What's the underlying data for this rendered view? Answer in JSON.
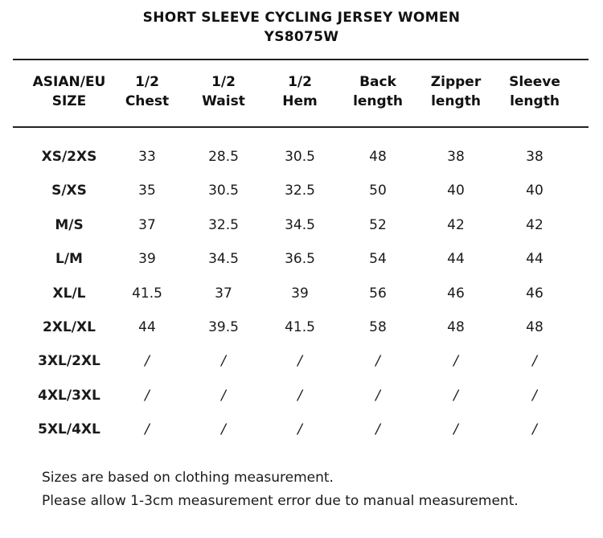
{
  "title": {
    "line1": "SHORT SLEEVE CYCLING JERSEY WOMEN",
    "line2": "YS8075W"
  },
  "columns": [
    {
      "line1": "ASIAN/EU",
      "line2": "SIZE"
    },
    {
      "line1": "1/2",
      "line2": "Chest"
    },
    {
      "line1": "1/2",
      "line2": "Waist"
    },
    {
      "line1": "1/2",
      "line2": "Hem"
    },
    {
      "line1": "Back",
      "line2": "length"
    },
    {
      "line1": "Zipper",
      "line2": "length"
    },
    {
      "line1": "Sleeve",
      "line2": "length"
    }
  ],
  "rows": [
    [
      "XS/2XS",
      "33",
      "28.5",
      "30.5",
      "48",
      "38",
      "38"
    ],
    [
      "S/XS",
      "35",
      "30.5",
      "32.5",
      "50",
      "40",
      "40"
    ],
    [
      "M/S",
      "37",
      "32.5",
      "34.5",
      "52",
      "42",
      "42"
    ],
    [
      "L/M",
      "39",
      "34.5",
      "36.5",
      "54",
      "44",
      "44"
    ],
    [
      "XL/L",
      "41.5",
      "37",
      "39",
      "56",
      "46",
      "46"
    ],
    [
      "2XL/XL",
      "44",
      "39.5",
      "41.5",
      "58",
      "48",
      "48"
    ],
    [
      "3XL/2XL",
      "/",
      "/",
      "/",
      "/",
      "/",
      "/"
    ],
    [
      "4XL/3XL",
      "/",
      "/",
      "/",
      "/",
      "/",
      "/"
    ],
    [
      "5XL/4XL",
      "/",
      "/",
      "/",
      "/",
      "/",
      "/"
    ]
  ],
  "notes": [
    "Sizes are based on clothing measurement.",
    "Please allow 1-3cm measurement error due to manual measurement."
  ]
}
